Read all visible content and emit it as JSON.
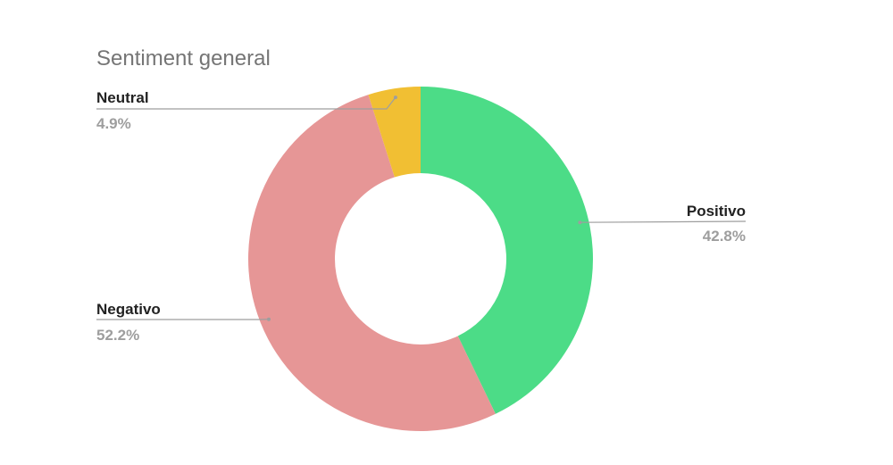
{
  "chart_data": {
    "type": "pie",
    "donut": true,
    "title": "Sentiment general",
    "slices": [
      {
        "label": "Positivo",
        "value": 42.8,
        "display": "42.8%",
        "color": "#4cdc87"
      },
      {
        "label": "Negativo",
        "value": 52.2,
        "display": "52.2%",
        "color": "#e69696"
      },
      {
        "label": "Neutral",
        "value": 4.9,
        "display": "4.9%",
        "color": "#f1bf33"
      }
    ],
    "start_angle_deg": 0,
    "direction": "clockwise",
    "legend": "none"
  }
}
